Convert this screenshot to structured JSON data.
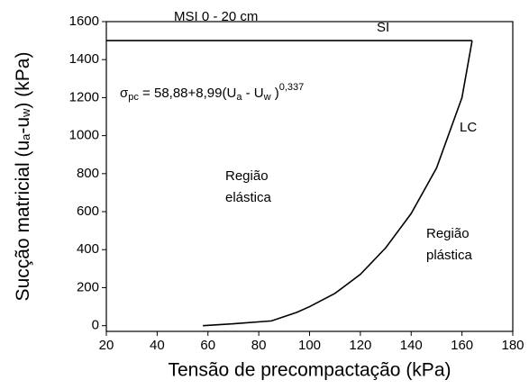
{
  "chart_data": {
    "type": "line",
    "xlabel": "Tensão de precompactação (kPa)",
    "ylabel_parts": [
      "Sucção matricial (u",
      "a",
      "-u",
      "w",
      ") (kPa)"
    ],
    "xlim": [
      20,
      180
    ],
    "xticks": [
      20,
      40,
      60,
      80,
      100,
      120,
      140,
      160,
      180
    ],
    "ylim": [
      -30,
      1600
    ],
    "yticks": [
      0,
      200,
      400,
      600,
      800,
      1000,
      1200,
      1400,
      1600
    ],
    "series": [
      {
        "color": "#000000",
        "x": [
          58,
          70,
          85,
          95,
          100,
          110,
          120,
          130,
          140,
          150,
          160,
          164
        ],
        "values": [
          0,
          10,
          25,
          70,
          100,
          170,
          270,
          410,
          590,
          830,
          1200,
          1500
        ]
      },
      {
        "color": "#000000",
        "x": [
          20,
          164
        ],
        "values": [
          1500,
          1500
        ]
      }
    ],
    "annotations": {
      "msi": "MSI  0 - 20 cm",
      "si": "SI",
      "lc": "LC",
      "elastic": [
        "Região",
        "elástica"
      ],
      "plastic": [
        "Região",
        "plástica"
      ],
      "equation": [
        "σ",
        "pc",
        " = 58,88+8,99(U",
        "a",
        " - U",
        "w",
        " )",
        "0,337"
      ]
    }
  }
}
